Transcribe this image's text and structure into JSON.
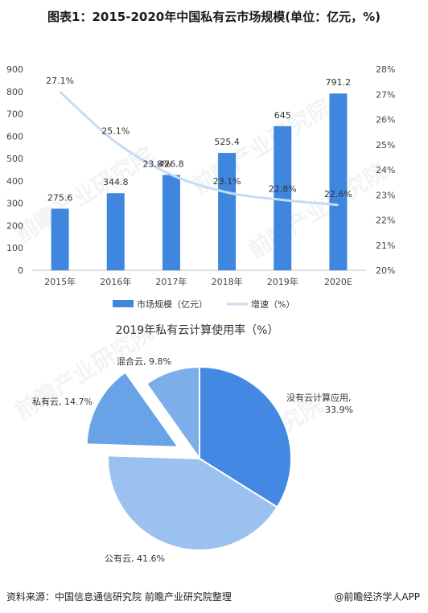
{
  "title": "图表1：2015-2020年中国私有云市场规模(单位：亿元，%)",
  "watermark": "前瞻产业研究院",
  "chart_data": [
    {
      "type": "bar",
      "categories": [
        "2015年",
        "2016年",
        "2017年",
        "2018年",
        "2019年",
        "2020E"
      ],
      "series": [
        {
          "name": "市场规模（亿元）",
          "values": [
            275.6,
            344.8,
            426.8,
            525.4,
            645,
            791.2
          ],
          "color": "#3f86de",
          "axis": "left"
        },
        {
          "name": "增速（%）",
          "type": "line",
          "values": [
            27.1,
            25.1,
            23.8,
            23.1,
            22.8,
            22.6
          ],
          "labels": [
            "27.1%",
            "25.1%",
            "23.8%",
            "23.1%",
            "22.8%",
            "22.6%"
          ],
          "color": "#c5dcf4",
          "axis": "right"
        }
      ],
      "left_ticks": [
        "0",
        "100",
        "200",
        "300",
        "400",
        "500",
        "600",
        "700",
        "800",
        "900"
      ],
      "right_ticks": [
        "20%",
        "21%",
        "22%",
        "23%",
        "24%",
        "25%",
        "26%",
        "27%",
        "28%"
      ],
      "ylim": [
        0,
        900
      ],
      "y2lim": [
        20,
        28
      ],
      "grid": false,
      "legend_position": "bottom"
    },
    {
      "type": "pie",
      "title": "2019年私有云计算使用率（%）",
      "slices": [
        {
          "label": "没有云计算应用",
          "value": 33.9,
          "text": "没有云计算应用,\n33.9%",
          "color": "#4388e2",
          "exploded": false
        },
        {
          "label": "公有云",
          "value": 41.6,
          "text": "公有云, 41.6%",
          "color": "#9bc1f0",
          "exploded": false
        },
        {
          "label": "私有云",
          "value": 14.7,
          "text": "私有云, 14.7%",
          "color": "#6aa2e8",
          "exploded": true
        },
        {
          "label": "混合云",
          "value": 9.8,
          "text": "混合云, 9.8%",
          "color": "#7eaeea",
          "exploded": false
        }
      ]
    }
  ],
  "footer": {
    "source": "资料来源：中国信息通信研究院 前瞻产业研究院整理",
    "brand": "@前瞻经济学人APP"
  }
}
